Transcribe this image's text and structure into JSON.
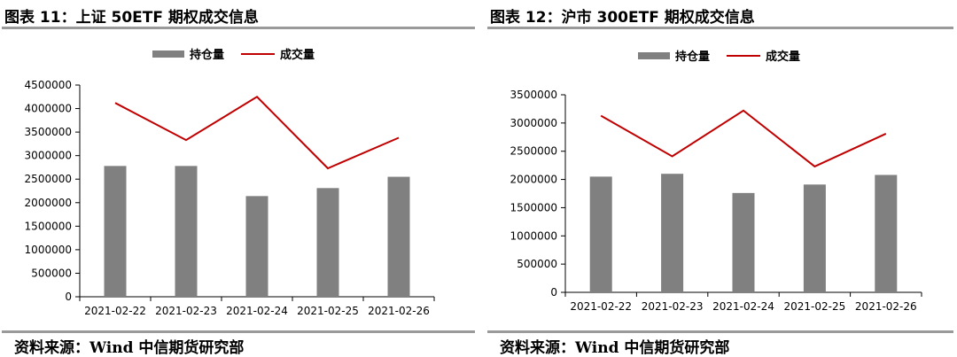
{
  "charts": [
    {
      "title": "图表 11：上证 50ETF 期权成交信息",
      "source": "资料来源：Wind  中信期货研究部"
    },
    {
      "title": "图表 12：沪市 300ETF 期权成交信息",
      "source": "资料来源：Wind  中信期货研究部"
    }
  ],
  "colors": {
    "bar": "#808080",
    "line": "#c00000",
    "rule": "#9a9a9a"
  },
  "chart_data": [
    {
      "type": "bar",
      "title": "图表 11：上证 50ETF 期权成交信息",
      "categories": [
        "2021-02-22",
        "2021-02-23",
        "2021-02-24",
        "2021-02-25",
        "2021-02-26"
      ],
      "series": [
        {
          "name": "持仓量",
          "kind": "bar",
          "values": [
            2780000,
            2780000,
            2140000,
            2310000,
            2550000
          ]
        },
        {
          "name": "成交量",
          "kind": "line",
          "values": [
            4120000,
            3330000,
            4250000,
            2730000,
            3380000
          ]
        }
      ],
      "yticks": [
        "0",
        "500000",
        "1000000",
        "1500000",
        "2000000",
        "2500000",
        "3000000",
        "3500000",
        "4000000",
        "4500000"
      ],
      "ylim": [
        0,
        4500000
      ],
      "xlabel": "",
      "ylabel": "",
      "legend": "top-center"
    },
    {
      "type": "bar",
      "title": "图表 12：沪市 300ETF 期权成交信息",
      "categories": [
        "2021-02-22",
        "2021-02-23",
        "2021-02-24",
        "2021-02-25",
        "2021-02-26"
      ],
      "series": [
        {
          "name": "持仓量",
          "kind": "bar",
          "values": [
            2050000,
            2100000,
            1760000,
            1910000,
            2080000
          ]
        },
        {
          "name": "成交量",
          "kind": "line",
          "values": [
            3130000,
            2410000,
            3220000,
            2230000,
            2810000
          ]
        }
      ],
      "yticks": [
        "0",
        "500000",
        "1000000",
        "1500000",
        "2000000",
        "2500000",
        "3000000",
        "3500000"
      ],
      "ylim": [
        0,
        3500000
      ],
      "xlabel": "",
      "ylabel": "",
      "legend": "top-center"
    }
  ]
}
